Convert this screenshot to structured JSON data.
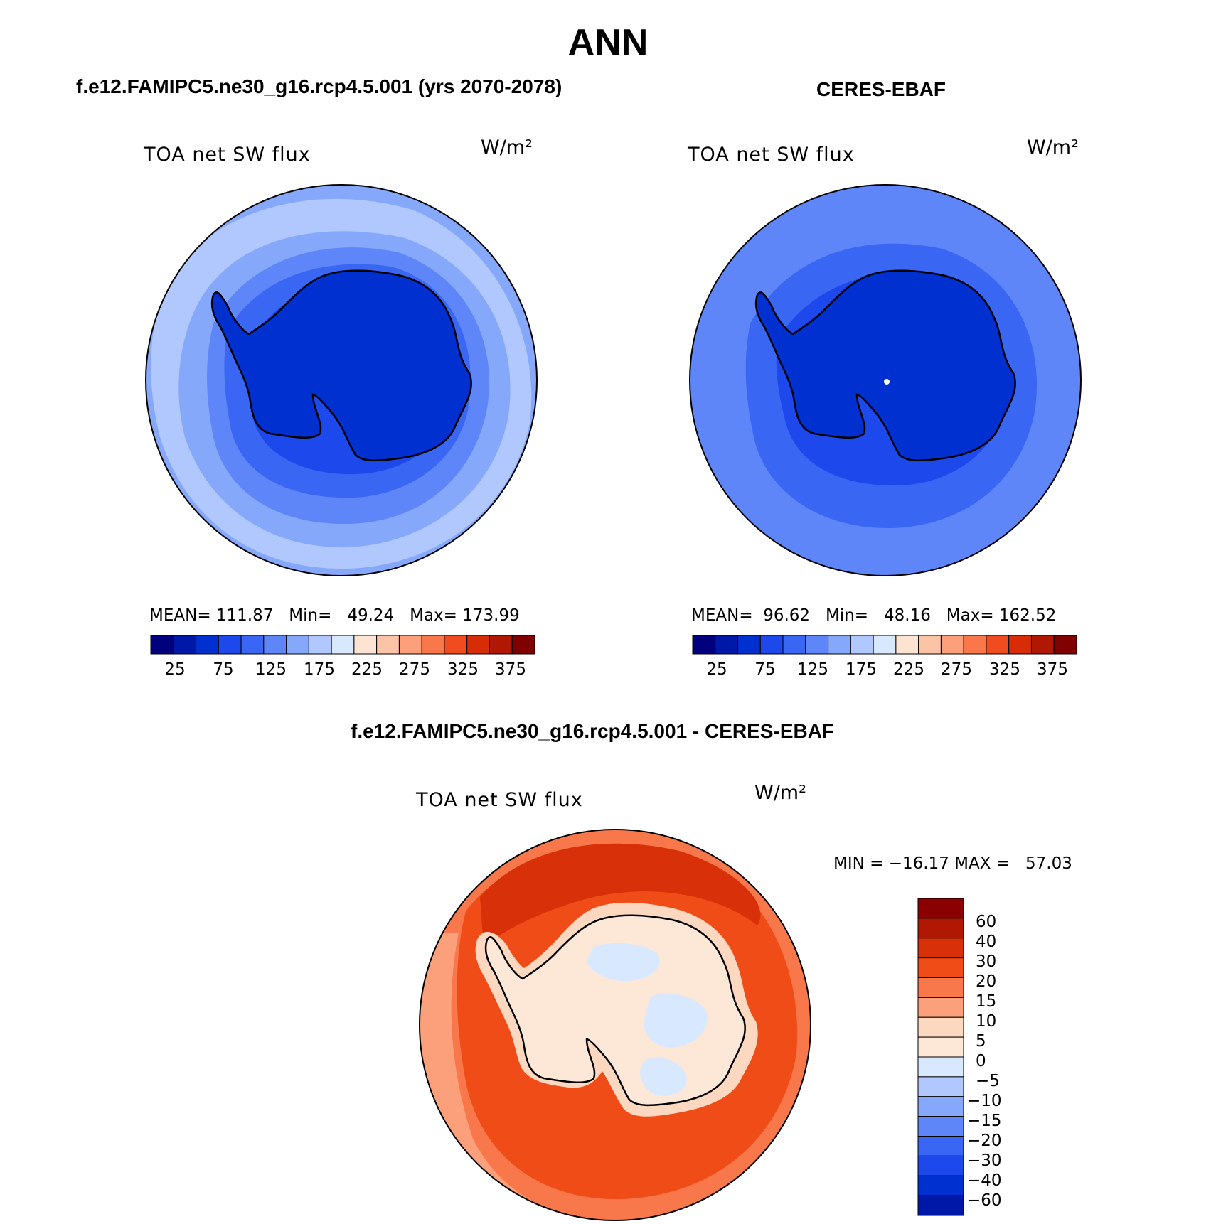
{
  "main_title": "ANN",
  "panels": [
    {
      "title": "f.e12.FAMIPC5.ne30_g16.rcp4.5.001 (yrs 2070-2078)",
      "variable": "TOA net SW flux",
      "units": "W/m²",
      "stats": "MEAN= 111.87   Min=   49.24   Max= 173.99",
      "colorbar_ticks": [
        "25",
        "75",
        "125",
        "175",
        "225",
        "275",
        "325",
        "375"
      ],
      "colorbar_colors": [
        "#00007f",
        "#0018a8",
        "#0030d0",
        "#1d48ec",
        "#3a66f4",
        "#5f86f8",
        "#86a8fb",
        "#b0c8fd",
        "#d8e8fe",
        "#fde4d2",
        "#fcc4a6",
        "#fba07a",
        "#f8784c",
        "#f04c20",
        "#d82c06",
        "#b01804",
        "#800000"
      ],
      "contours": {
        "background": "#86a8fb",
        "ring1": "#b0c8fd",
        "ring2": "#86a8fb",
        "ring3": "#5f86f8",
        "ring4": "#3a66f4",
        "inner": "#1d48ec",
        "land": "#0030d0"
      }
    },
    {
      "title": "CERES-EBAF",
      "variable": "TOA net SW flux",
      "units": "W/m²",
      "stats": "MEAN=  96.62   Min=   48.16   Max= 162.52",
      "colorbar_ticks": [
        "25",
        "75",
        "125",
        "175",
        "225",
        "275",
        "325",
        "375"
      ],
      "colorbar_colors": [
        "#00007f",
        "#0018a8",
        "#0030d0",
        "#1d48ec",
        "#3a66f4",
        "#5f86f8",
        "#86a8fb",
        "#b0c8fd",
        "#d8e8fe",
        "#fde4d2",
        "#fcc4a6",
        "#fba07a",
        "#f8784c",
        "#f04c20",
        "#d82c06",
        "#b01804",
        "#800000"
      ],
      "contours": {
        "background": "#5f86f8",
        "ring1": "#86a8fb",
        "ring2": "#5f86f8",
        "ring3": "#3a66f4",
        "ring4": "#3a66f4",
        "inner": "#1d48ec",
        "land": "#0030d0"
      }
    }
  ],
  "diff_panel": {
    "title": "f.e12.FAMIPC5.ne30_g16.rcp4.5.001 - CERES-EBAF",
    "variable": "TOA net SW flux",
    "units": "W/m²",
    "stats": "MIN = −16.17 MAX =   57.03",
    "colorbar_labels": [
      "60",
      "40",
      "30",
      "20",
      "15",
      "10",
      "5",
      "0",
      "−5",
      "−10",
      "−15",
      "−20",
      "−30",
      "−40",
      "−60"
    ],
    "colorbar_colors": [
      "#8b0000",
      "#b01804",
      "#d83008",
      "#f04c18",
      "#f8784c",
      "#fba07a",
      "#fdd8c0",
      "#fde8d8",
      "#d8e8fe",
      "#b0c8fd",
      "#86a8fb",
      "#5f86f8",
      "#3a66f4",
      "#1d48ec",
      "#0030d0",
      "#0018a8"
    ],
    "contours": {
      "background": "#f8784c",
      "outer": "#fba07a",
      "ring1": "#f04c18",
      "ring2": "#d83008",
      "coast": "#fdd8c0",
      "land": "#fde8d8",
      "patch": "#d8e8fe"
    }
  }
}
